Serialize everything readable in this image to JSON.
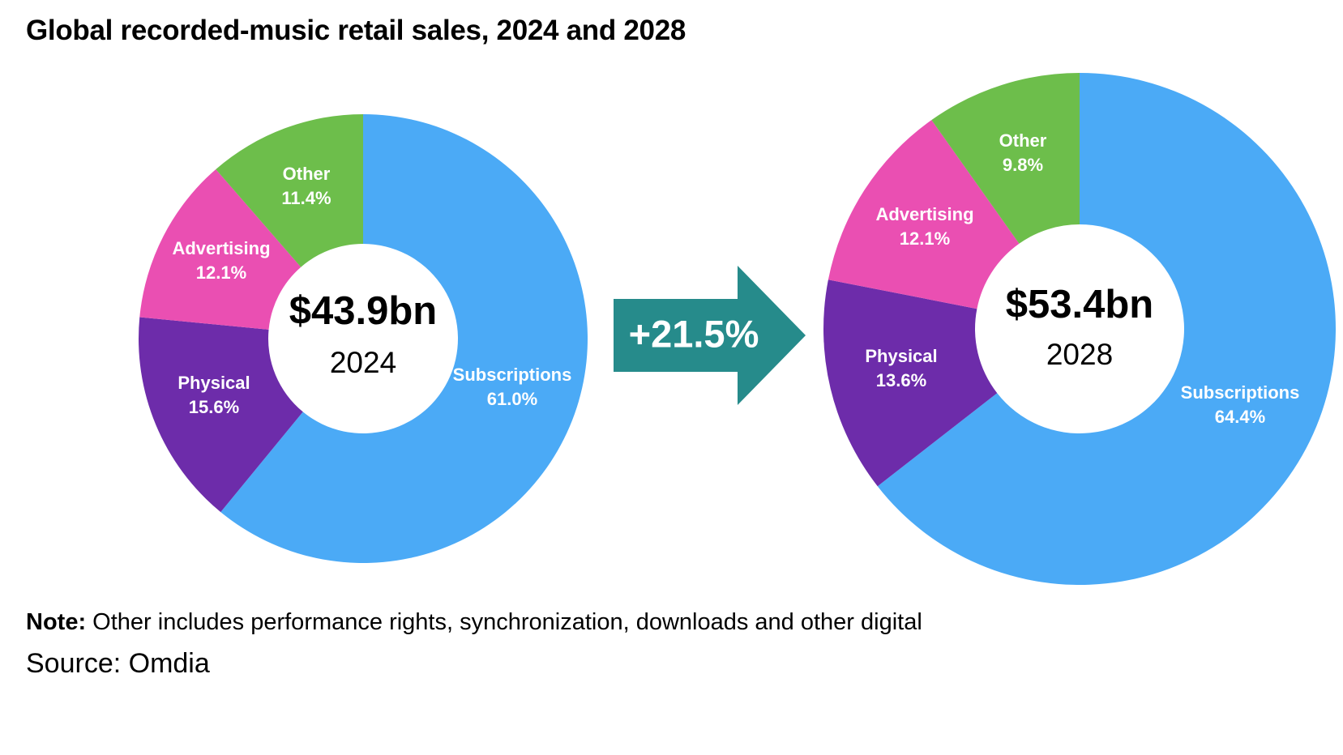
{
  "title": "Global recorded-music retail sales, 2024 and 2028",
  "growth_label": "+21.5%",
  "note_label": "Note:",
  "note_text": "Other includes performance rights, synchronization, downloads and other digital",
  "source": "Source: Omdia",
  "colors": {
    "subscriptions": "#4BAAF6",
    "physical": "#6D2CAA",
    "advertising": "#EA4FB2",
    "other": "#6DBE4B",
    "arrow": "#268B8B"
  },
  "chart_data": [
    {
      "type": "pie",
      "variant": "donut",
      "total_label": "$43.9bn",
      "year_label": "2024",
      "slices": [
        {
          "name": "Subscriptions",
          "value": 61.0,
          "label": "61.0%",
          "color_key": "subscriptions"
        },
        {
          "name": "Physical",
          "value": 15.6,
          "label": "15.6%",
          "color_key": "physical"
        },
        {
          "name": "Advertising",
          "value": 12.1,
          "label": "12.1%",
          "color_key": "advertising"
        },
        {
          "name": "Other",
          "value": 11.4,
          "label": "11.4%",
          "color_key": "other"
        }
      ]
    },
    {
      "type": "pie",
      "variant": "donut",
      "total_label": "$53.4bn",
      "year_label": "2028",
      "slices": [
        {
          "name": "Subscriptions",
          "value": 64.4,
          "label": "64.4%",
          "color_key": "subscriptions"
        },
        {
          "name": "Physical",
          "value": 13.6,
          "label": "13.6%",
          "color_key": "physical"
        },
        {
          "name": "Advertising",
          "value": 12.1,
          "label": "12.1%",
          "color_key": "advertising"
        },
        {
          "name": "Other",
          "value": 9.8,
          "label": "9.8%",
          "color_key": "other"
        }
      ]
    }
  ]
}
